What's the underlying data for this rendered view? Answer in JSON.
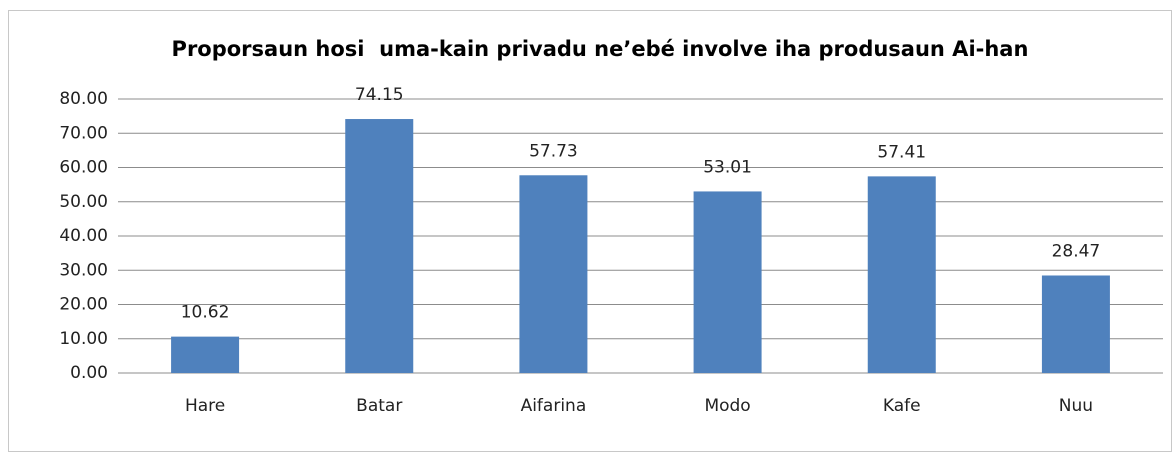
{
  "chart_data": {
    "type": "bar",
    "title": "Proporsaun hosi  uma-kain privadu ne’ebé involve iha produsaun Ai-han",
    "categories": [
      "Hare",
      "Batar",
      "Aifarina",
      "Modo",
      "Kafe",
      "Nuu"
    ],
    "values": [
      10.62,
      74.15,
      57.73,
      53.01,
      57.41,
      28.47
    ],
    "color": "#4f81bd",
    "ylim": [
      0,
      80
    ],
    "yticks": [
      {
        "value": 0,
        "label": "0.00"
      },
      {
        "value": 10,
        "label": "10.00"
      },
      {
        "value": 20,
        "label": "20.00"
      },
      {
        "value": 30,
        "label": "30.00"
      },
      {
        "value": 40,
        "label": "40.00"
      },
      {
        "value": 50,
        "label": "50.00"
      },
      {
        "value": 60,
        "label": "60.00"
      },
      {
        "value": 70,
        "label": "70.00"
      },
      {
        "value": 80,
        "label": "80.00"
      }
    ],
    "grid": true
  }
}
